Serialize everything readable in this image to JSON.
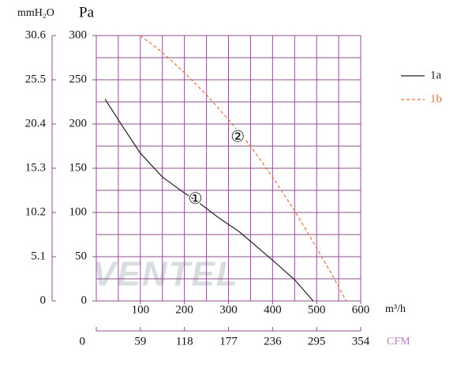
{
  "chart_data": {
    "type": "line",
    "y_unit": "Pa",
    "y2_unit": "mmH₂O",
    "x_unit": "m³/h",
    "x2_unit": "CFM",
    "xlim": [
      0,
      600
    ],
    "xticks": [
      100,
      200,
      300,
      400,
      500,
      600
    ],
    "x2lim": [
      0,
      354
    ],
    "x2ticks": [
      0,
      59,
      118,
      177,
      236,
      295,
      354
    ],
    "ylim": [
      0,
      300
    ],
    "yticks": [
      0,
      50,
      100,
      150,
      200,
      250,
      300
    ],
    "y2lim": [
      0,
      30.6
    ],
    "y2ticks": [
      0,
      5.1,
      10.2,
      15.3,
      20.4,
      25.5,
      30.6
    ],
    "xgrid": [
      0,
      50,
      100,
      150,
      200,
      250,
      300,
      350,
      400,
      450,
      500,
      550,
      600
    ],
    "ygrid": [
      0,
      25,
      50,
      75,
      100,
      125,
      150,
      175,
      200,
      225,
      250,
      275,
      300
    ],
    "grid_color": "#8e4f8e",
    "series": [
      {
        "name": "1a",
        "color": "#222222",
        "dashed": false,
        "x": [
          20,
          60,
          100,
          150,
          200,
          225,
          275,
          325,
          400,
          450,
          492
        ],
        "values": [
          228,
          197,
          167,
          140,
          122,
          114,
          95,
          78,
          46,
          24,
          0
        ]
      },
      {
        "name": "1b",
        "color": "#e8703a",
        "dashed": true,
        "x": [
          100,
          150,
          200,
          250,
          300,
          350,
          400,
          450,
          500,
          540,
          567
        ],
        "values": [
          300,
          281,
          258,
          233,
          205,
          175,
          140,
          102,
          60,
          25,
          0
        ]
      }
    ],
    "annotations": [
      {
        "text": "①",
        "x": 225,
        "y": 114
      },
      {
        "text": "②",
        "x": 321,
        "y": 184
      }
    ],
    "watermark": "VENTEL"
  }
}
